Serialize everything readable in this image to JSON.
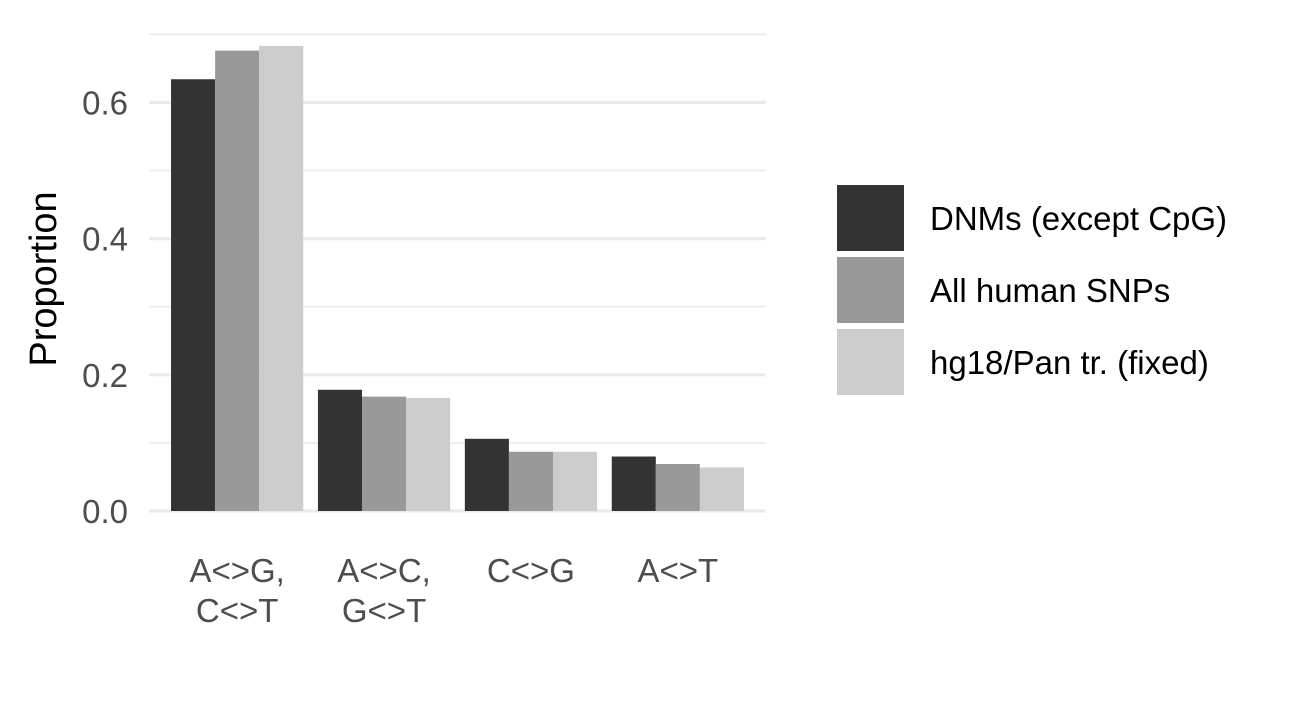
{
  "chart_data": {
    "type": "bar",
    "title": "",
    "xlabel": "",
    "ylabel": "Proportion",
    "categories": [
      [
        "A<>G,",
        "C<>T"
      ],
      [
        "A<>C,",
        "G<>T"
      ],
      [
        "C<>G"
      ],
      [
        "A<>T"
      ]
    ],
    "series": [
      {
        "name": "DNMs (except CpG)",
        "color": "#333333",
        "values": [
          0.634,
          0.178,
          0.106,
          0.08
        ]
      },
      {
        "name": "All human SNPs",
        "color": "#999999",
        "values": [
          0.676,
          0.168,
          0.087,
          0.069
        ]
      },
      {
        "name": "hg18/Pan tr. (fixed)",
        "color": "#cccccc",
        "values": [
          0.683,
          0.166,
          0.087,
          0.064
        ]
      }
    ],
    "yticks": [
      0.0,
      0.2,
      0.4,
      0.6
    ],
    "ytick_labels": [
      "0.0",
      "0.2",
      "0.4",
      "0.6"
    ],
    "ylim": [
      0,
      0.7
    ],
    "grid": true,
    "legend_position": "right",
    "colors": {
      "grid": "#ebebeb",
      "tick_text": "#4d4d4d",
      "background": "#ffffff"
    }
  }
}
